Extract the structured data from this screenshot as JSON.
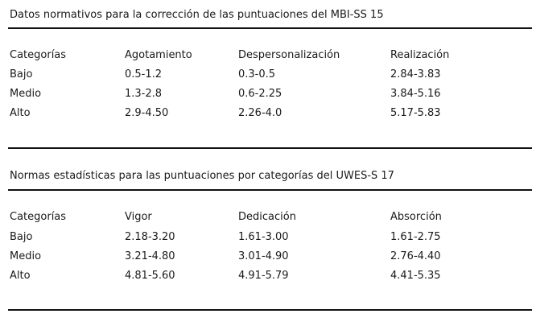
{
  "tables": [
    {
      "caption": "Datos normativos para la corrección de las puntuaciones del MBI-SS 15",
      "headers": [
        "Categorías",
        "Agotamiento",
        "Despersonalización",
        "Realización"
      ],
      "rows": [
        [
          "Bajo",
          "0.5-1.2",
          "0.3-0.5",
          "2.84-3.83"
        ],
        [
          "Medio",
          "1.3-2.8",
          "0.6-2.25",
          "3.84-5.16"
        ],
        [
          "Alto",
          "2.9-4.50",
          "2.26-4.0",
          "5.17-5.83"
        ]
      ]
    },
    {
      "caption": "Normas estadísticas para las puntuaciones por categorías del UWES-S 17",
      "headers": [
        "Categorías",
        "Vigor",
        "Dedicación",
        "Absorción"
      ],
      "rows": [
        [
          "Bajo",
          "2.18-3.20",
          "1.61-3.00",
          "1.61-2.75"
        ],
        [
          "Medio",
          "3.21-4.80",
          "3.01-4.90",
          "2.76-4.40"
        ],
        [
          "Alto",
          "4.81-5.60",
          "4.91-5.79",
          "4.41-5.35"
        ]
      ]
    }
  ]
}
